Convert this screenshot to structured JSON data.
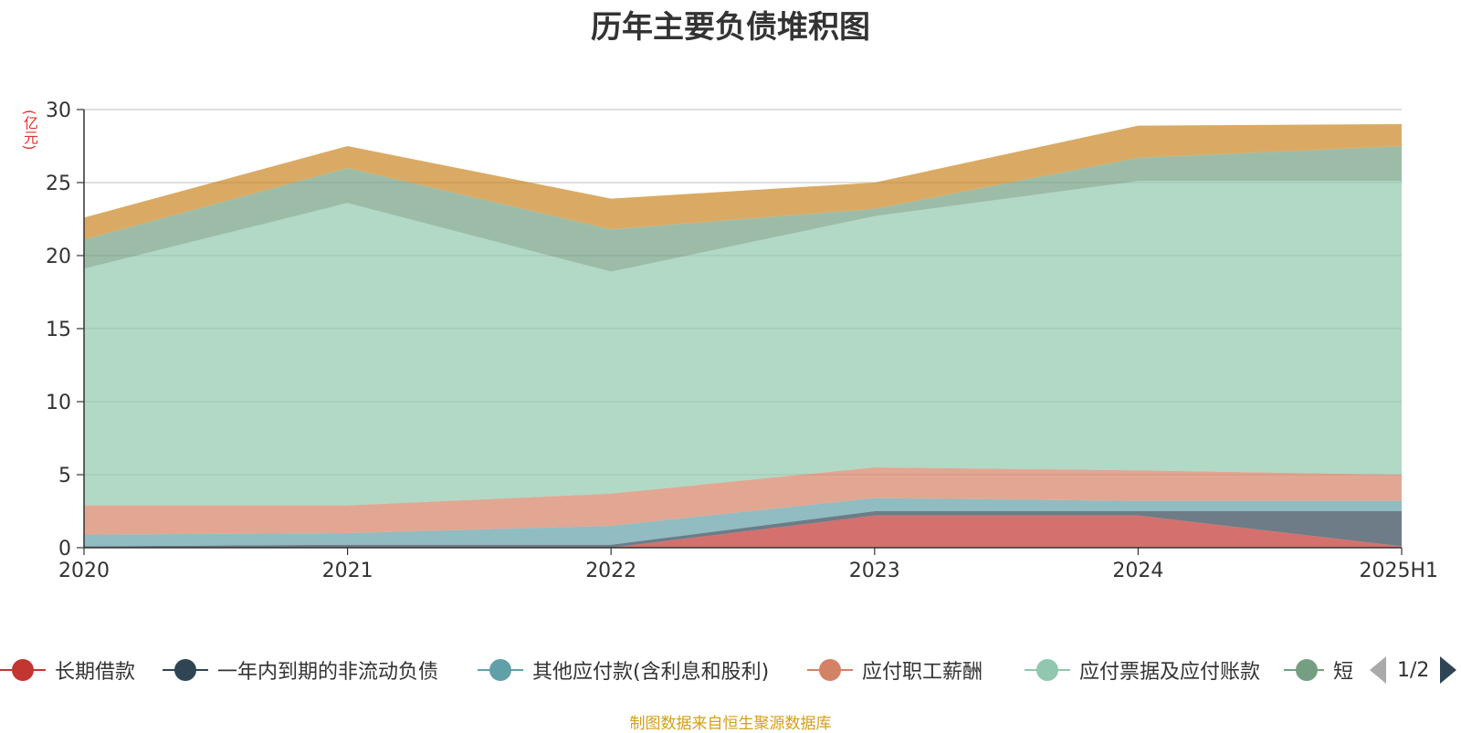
{
  "chart_data": {
    "type": "area",
    "stacked": true,
    "title": "历年主要负债堆积图",
    "ylabel": "(亿元)",
    "ylim": [
      0,
      30
    ],
    "yticks": [
      0,
      5,
      10,
      15,
      20,
      25,
      30
    ],
    "categories": [
      "2020",
      "2021",
      "2022",
      "2023",
      "2024",
      "2025H1"
    ],
    "grid": true,
    "series": [
      {
        "name": "长期借款",
        "color": "#c23531",
        "values": [
          0,
          0,
          0,
          2.2,
          2.2,
          0.1
        ]
      },
      {
        "name": "一年内到期的非流动负债",
        "color": "#2f4554",
        "values": [
          0.1,
          0.2,
          0.2,
          0.3,
          0.3,
          2.4
        ]
      },
      {
        "name": "其他应付款(含利息和股利)",
        "color": "#61a0a8",
        "values": [
          0.8,
          0.8,
          1.3,
          0.9,
          0.7,
          0.7
        ]
      },
      {
        "name": "应付职工薪酬",
        "color": "#d48265",
        "values": [
          2.0,
          1.9,
          2.2,
          2.1,
          2.1,
          1.8
        ]
      },
      {
        "name": "应付票据及应付账款",
        "color": "#91c7ae",
        "values": [
          16.2,
          20.7,
          15.2,
          17.2,
          19.8,
          20.1
        ]
      },
      {
        "name": "短期借款",
        "color": "#749f83",
        "values": [
          2.0,
          2.4,
          2.9,
          0.5,
          1.6,
          2.4
        ]
      },
      {
        "name": "",
        "color": "#ca8622",
        "values": [
          1.5,
          1.5,
          2.1,
          1.8,
          2.2,
          1.5
        ]
      }
    ],
    "legend_position": "bottom"
  },
  "legend": {
    "page_text": "1/2",
    "truncated_label": "短"
  },
  "source_note": "制图数据来自恒生聚源数据库"
}
